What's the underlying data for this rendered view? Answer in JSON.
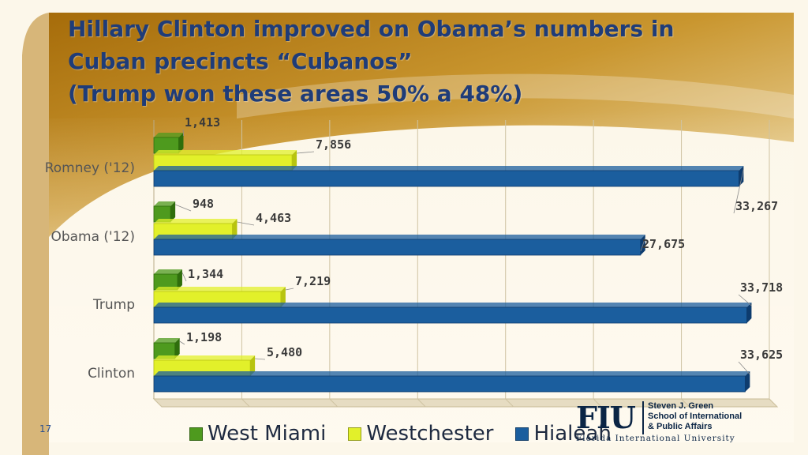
{
  "slide": {
    "title_lines": [
      "Hillary Clinton improved on Obama’s numbers in",
      "Cuban precincts “Cubanos”",
      "(Trump won these areas 50% a 48%)"
    ],
    "slide_number": "17"
  },
  "logo": {
    "mark": "FIU",
    "lines": [
      "Steven J. Green",
      "School of International",
      "& Public Affairs"
    ],
    "university": "Florida International University"
  },
  "chart_data": {
    "type": "bar",
    "orientation": "horizontal",
    "categories": [
      "Romney ('12)",
      "Obama ('12)",
      "Trump",
      "Clinton"
    ],
    "series": [
      {
        "name": "West Miami",
        "values": [
          1413,
          948,
          1344,
          1198
        ],
        "labels": [
          "1,413",
          "948",
          "1,344",
          "1,198"
        ],
        "color": "#4e9a1e"
      },
      {
        "name": "Westchester",
        "values": [
          7856,
          4463,
          7219,
          5480
        ],
        "labels": [
          "7,856",
          "4,463",
          "7,219",
          "5,480"
        ],
        "color": "#e2f02a"
      },
      {
        "name": "Hialeah",
        "values": [
          33267,
          27675,
          33718,
          33625
        ],
        "labels": [
          "33,267",
          "27,675",
          "33,718",
          "33,625"
        ],
        "color": "#1b5e9e"
      }
    ],
    "xlim": [
      0,
      35000
    ],
    "grid": true,
    "legend": "bottom"
  }
}
